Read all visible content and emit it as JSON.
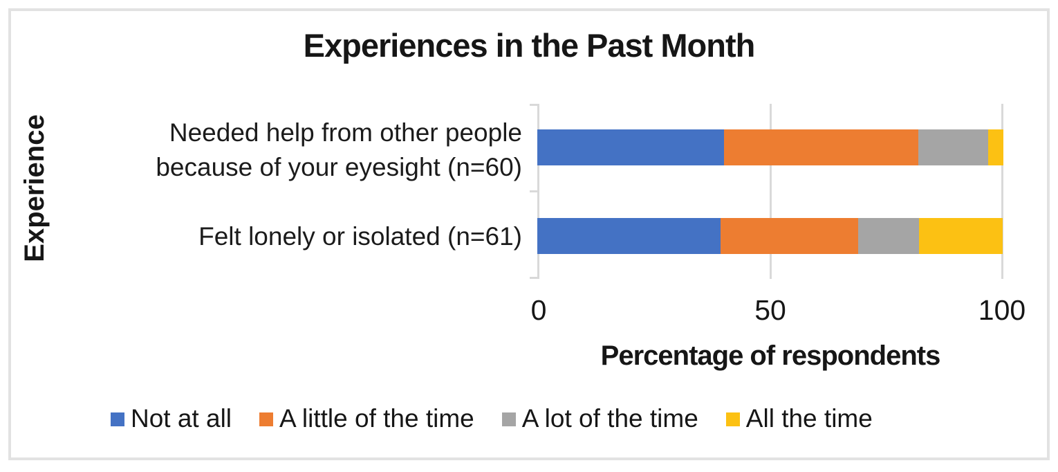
{
  "chart_data": {
    "type": "bar",
    "orientation": "horizontal",
    "stacked": true,
    "title": "Experiences in the Past Month",
    "xlabel": "Percentage of respondents",
    "ylabel": "Experience",
    "xlim": [
      0,
      100
    ],
    "xticks": [
      "0",
      "50",
      "100"
    ],
    "grid": "vertical gridlines at 0, 50, 100",
    "legend_position": "bottom",
    "categories": [
      "Needed help from other people because of your eyesight (n=60)",
      "Felt lonely or isolated (n=61)"
    ],
    "series": [
      {
        "name": "Not at all",
        "color": "#4472C4",
        "values": [
          40,
          39.3
        ]
      },
      {
        "name": "A little of the time",
        "color": "#ED7D31",
        "values": [
          41.7,
          29.5
        ]
      },
      {
        "name": "A lot of the time",
        "color": "#A5A5A5",
        "values": [
          15,
          13.1
        ]
      },
      {
        "name": "All the time",
        "color": "#FCC113",
        "values": [
          3.3,
          18
        ]
      }
    ]
  },
  "colors": {
    "background": "#FFFFFF",
    "frame_border": "#E2E2E2",
    "gridline": "#D9D9D9",
    "text": "#161616"
  }
}
